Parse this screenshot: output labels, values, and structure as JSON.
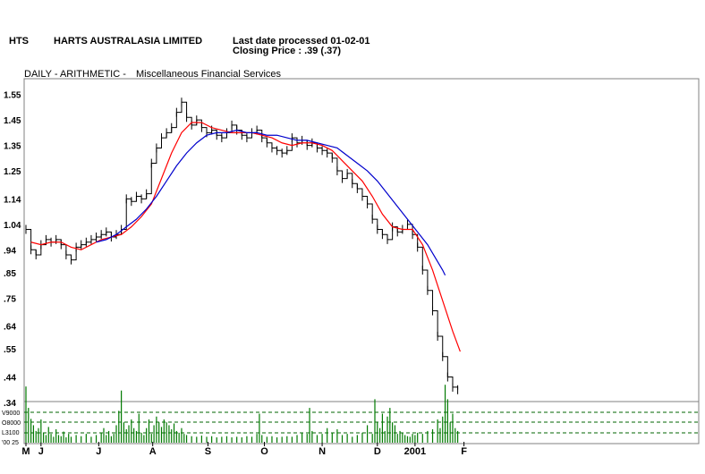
{
  "header": {
    "code": "HTS",
    "company": "HARTS AUSTRALASIA LIMITED",
    "last_date": "Last date processed 01-02-01",
    "closing": "Closing Price : .39  (.37)",
    "mode": "DAILY - ARITHMETIC -",
    "sector": "Miscellaneous Financial Services"
  },
  "chart_data": {
    "type": "line",
    "y_ticks": [
      "1.55",
      "1.45",
      "1.35",
      "1.25",
      "1.14",
      "1.04",
      ".94",
      ".85",
      ".75",
      ".64",
      ".55",
      ".44",
      ".34"
    ],
    "y_tick_values": [
      1.55,
      1.45,
      1.35,
      1.25,
      1.14,
      1.04,
      0.94,
      0.85,
      0.75,
      0.64,
      0.55,
      0.44,
      0.34
    ],
    "ylim": [
      0.34,
      1.57
    ],
    "x_ticks": [
      "M",
      "J",
      "J",
      "A",
      "S",
      "O",
      "N",
      "D",
      "2001",
      "F"
    ],
    "x_tick_days": [
      0,
      12,
      58,
      101,
      145,
      190,
      236,
      280,
      310,
      349
    ],
    "xlim": [
      0,
      350
    ],
    "price": [
      [
        0,
        1.02
      ],
      [
        4,
        0.94
      ],
      [
        8,
        0.92
      ],
      [
        12,
        0.96
      ],
      [
        16,
        0.98
      ],
      [
        20,
        0.97
      ],
      [
        24,
        0.98
      ],
      [
        28,
        0.96
      ],
      [
        32,
        0.92
      ],
      [
        36,
        0.9
      ],
      [
        40,
        0.95
      ],
      [
        44,
        0.96
      ],
      [
        48,
        0.97
      ],
      [
        52,
        0.98
      ],
      [
        56,
        0.99
      ],
      [
        60,
        1.0
      ],
      [
        64,
        1.01
      ],
      [
        68,
        0.99
      ],
      [
        72,
        1.0
      ],
      [
        76,
        1.02
      ],
      [
        80,
        1.14
      ],
      [
        84,
        1.13
      ],
      [
        88,
        1.15
      ],
      [
        92,
        1.14
      ],
      [
        96,
        1.16
      ],
      [
        100,
        1.28
      ],
      [
        104,
        1.34
      ],
      [
        108,
        1.38
      ],
      [
        112,
        1.4
      ],
      [
        116,
        1.42
      ],
      [
        120,
        1.48
      ],
      [
        124,
        1.52
      ],
      [
        128,
        1.46
      ],
      [
        132,
        1.43
      ],
      [
        136,
        1.45
      ],
      [
        140,
        1.42
      ],
      [
        144,
        1.4
      ],
      [
        148,
        1.41
      ],
      [
        152,
        1.39
      ],
      [
        156,
        1.38
      ],
      [
        160,
        1.4
      ],
      [
        164,
        1.43
      ],
      [
        168,
        1.41
      ],
      [
        172,
        1.39
      ],
      [
        176,
        1.38
      ],
      [
        180,
        1.4
      ],
      [
        184,
        1.41
      ],
      [
        188,
        1.38
      ],
      [
        192,
        1.36
      ],
      [
        196,
        1.34
      ],
      [
        200,
        1.33
      ],
      [
        204,
        1.32
      ],
      [
        208,
        1.33
      ],
      [
        212,
        1.38
      ],
      [
        216,
        1.36
      ],
      [
        220,
        1.37
      ],
      [
        224,
        1.35
      ],
      [
        228,
        1.36
      ],
      [
        232,
        1.34
      ],
      [
        236,
        1.33
      ],
      [
        240,
        1.32
      ],
      [
        244,
        1.3
      ],
      [
        248,
        1.25
      ],
      [
        252,
        1.22
      ],
      [
        256,
        1.24
      ],
      [
        260,
        1.2
      ],
      [
        264,
        1.18
      ],
      [
        268,
        1.15
      ],
      [
        272,
        1.12
      ],
      [
        276,
        1.06
      ],
      [
        280,
        1.02
      ],
      [
        284,
        1.0
      ],
      [
        288,
        0.98
      ],
      [
        292,
        1.03
      ],
      [
        296,
        1.01
      ],
      [
        300,
        1.02
      ],
      [
        304,
        1.04
      ],
      [
        308,
        1.0
      ],
      [
        312,
        0.95
      ],
      [
        316,
        0.86
      ],
      [
        320,
        0.78
      ],
      [
        324,
        0.7
      ],
      [
        328,
        0.6
      ],
      [
        332,
        0.52
      ],
      [
        336,
        0.44
      ],
      [
        340,
        0.4
      ],
      [
        344,
        0.39
      ]
    ],
    "series": [
      {
        "points": [
          [
            4,
            0.97
          ],
          [
            12,
            0.96
          ],
          [
            20,
            0.97
          ],
          [
            28,
            0.97
          ],
          [
            36,
            0.95
          ],
          [
            44,
            0.94
          ],
          [
            52,
            0.96
          ],
          [
            60,
            0.98
          ],
          [
            68,
            0.99
          ],
          [
            76,
            1.0
          ],
          [
            84,
            1.03
          ],
          [
            92,
            1.07
          ],
          [
            100,
            1.12
          ],
          [
            108,
            1.22
          ],
          [
            116,
            1.32
          ],
          [
            124,
            1.4
          ],
          [
            132,
            1.44
          ],
          [
            140,
            1.44
          ],
          [
            148,
            1.42
          ],
          [
            156,
            1.41
          ],
          [
            164,
            1.4
          ],
          [
            172,
            1.4
          ],
          [
            180,
            1.4
          ],
          [
            188,
            1.39
          ],
          [
            196,
            1.38
          ],
          [
            204,
            1.36
          ],
          [
            212,
            1.35
          ],
          [
            220,
            1.36
          ],
          [
            228,
            1.36
          ],
          [
            236,
            1.35
          ],
          [
            244,
            1.33
          ],
          [
            252,
            1.29
          ],
          [
            260,
            1.25
          ],
          [
            268,
            1.21
          ],
          [
            276,
            1.15
          ],
          [
            284,
            1.08
          ],
          [
            292,
            1.03
          ],
          [
            300,
            1.02
          ],
          [
            308,
            1.02
          ],
          [
            316,
            0.96
          ],
          [
            324,
            0.86
          ],
          [
            332,
            0.74
          ],
          [
            340,
            0.62
          ],
          [
            346,
            0.54
          ]
        ]
      },
      {
        "points": [
          [
            56,
            0.97
          ],
          [
            64,
            0.98
          ],
          [
            72,
            1.0
          ],
          [
            80,
            1.03
          ],
          [
            88,
            1.06
          ],
          [
            96,
            1.1
          ],
          [
            104,
            1.15
          ],
          [
            112,
            1.21
          ],
          [
            120,
            1.27
          ],
          [
            128,
            1.32
          ],
          [
            136,
            1.36
          ],
          [
            144,
            1.39
          ],
          [
            152,
            1.4
          ],
          [
            160,
            1.4
          ],
          [
            168,
            1.41
          ],
          [
            176,
            1.4
          ],
          [
            184,
            1.4
          ],
          [
            192,
            1.39
          ],
          [
            200,
            1.39
          ],
          [
            208,
            1.38
          ],
          [
            216,
            1.37
          ],
          [
            224,
            1.37
          ],
          [
            232,
            1.36
          ],
          [
            240,
            1.35
          ],
          [
            248,
            1.34
          ],
          [
            256,
            1.31
          ],
          [
            264,
            1.28
          ],
          [
            272,
            1.25
          ],
          [
            280,
            1.21
          ],
          [
            288,
            1.16
          ],
          [
            296,
            1.11
          ],
          [
            304,
            1.06
          ],
          [
            312,
            1.01
          ],
          [
            320,
            0.96
          ],
          [
            326,
            0.91
          ],
          [
            332,
            0.86
          ],
          [
            334,
            0.84
          ]
        ]
      }
    ],
    "volume_ticks": [
      "V9000",
      "O8000",
      "L3100",
      "'00 25"
    ],
    "volume": [
      [
        0,
        0.92
      ],
      [
        2,
        0.55
      ],
      [
        4,
        0.36
      ],
      [
        6,
        0.25
      ],
      [
        8,
        0.15
      ],
      [
        10,
        0.2
      ],
      [
        12,
        0.35
      ],
      [
        14,
        0.12
      ],
      [
        16,
        0.08
      ],
      [
        18,
        0.22
      ],
      [
        20,
        0.1
      ],
      [
        22,
        0.05
      ],
      [
        24,
        0.18
      ],
      [
        26,
        0.08
      ],
      [
        28,
        0.06
      ],
      [
        30,
        0.14
      ],
      [
        32,
        0.04
      ],
      [
        34,
        0.1
      ],
      [
        36,
        0.05
      ],
      [
        40,
        0.08
      ],
      [
        44,
        0.06
      ],
      [
        48,
        0.1
      ],
      [
        52,
        0.05
      ],
      [
        56,
        0.08
      ],
      [
        60,
        0.12
      ],
      [
        62,
        0.2
      ],
      [
        64,
        0.08
      ],
      [
        66,
        0.15
      ],
      [
        68,
        0.06
      ],
      [
        70,
        0.1
      ],
      [
        72,
        0.25
      ],
      [
        74,
        0.5
      ],
      [
        76,
        0.85
      ],
      [
        78,
        0.3
      ],
      [
        80,
        0.18
      ],
      [
        82,
        0.25
      ],
      [
        84,
        0.35
      ],
      [
        86,
        0.2
      ],
      [
        88,
        0.15
      ],
      [
        90,
        0.45
      ],
      [
        92,
        0.12
      ],
      [
        94,
        0.08
      ],
      [
        96,
        0.2
      ],
      [
        98,
        0.35
      ],
      [
        100,
        0.1
      ],
      [
        102,
        0.25
      ],
      [
        104,
        0.4
      ],
      [
        106,
        0.3
      ],
      [
        108,
        0.22
      ],
      [
        110,
        0.35
      ],
      [
        112,
        0.3
      ],
      [
        114,
        0.25
      ],
      [
        116,
        0.18
      ],
      [
        118,
        0.28
      ],
      [
        120,
        0.15
      ],
      [
        122,
        0.12
      ],
      [
        124,
        0.2
      ],
      [
        126,
        0.1
      ],
      [
        128,
        0.08
      ],
      [
        132,
        0.06
      ],
      [
        136,
        0.05
      ],
      [
        140,
        0.07
      ],
      [
        144,
        0.05
      ],
      [
        148,
        0.06
      ],
      [
        152,
        0.04
      ],
      [
        156,
        0.05
      ],
      [
        160,
        0.06
      ],
      [
        164,
        0.04
      ],
      [
        168,
        0.05
      ],
      [
        172,
        0.04
      ],
      [
        176,
        0.06
      ],
      [
        180,
        0.05
      ],
      [
        184,
        0.1
      ],
      [
        186,
        0.45
      ],
      [
        188,
        0.08
      ],
      [
        192,
        0.05
      ],
      [
        196,
        0.06
      ],
      [
        200,
        0.04
      ],
      [
        204,
        0.05
      ],
      [
        208,
        0.06
      ],
      [
        212,
        0.05
      ],
      [
        216,
        0.08
      ],
      [
        220,
        0.12
      ],
      [
        224,
        0.1
      ],
      [
        226,
        0.55
      ],
      [
        228,
        0.15
      ],
      [
        232,
        0.08
      ],
      [
        236,
        0.1
      ],
      [
        240,
        0.2
      ],
      [
        244,
        0.12
      ],
      [
        248,
        0.18
      ],
      [
        252,
        0.08
      ],
      [
        256,
        0.1
      ],
      [
        260,
        0.05
      ],
      [
        264,
        0.08
      ],
      [
        268,
        0.12
      ],
      [
        272,
        0.25
      ],
      [
        276,
        0.1
      ],
      [
        278,
        0.7
      ],
      [
        280,
        0.3
      ],
      [
        282,
        0.2
      ],
      [
        284,
        0.45
      ],
      [
        286,
        0.15
      ],
      [
        288,
        0.4
      ],
      [
        290,
        0.55
      ],
      [
        292,
        0.3
      ],
      [
        294,
        0.25
      ],
      [
        296,
        0.1
      ],
      [
        298,
        0.15
      ],
      [
        300,
        0.12
      ],
      [
        302,
        0.08
      ],
      [
        304,
        0.06
      ],
      [
        306,
        0.05
      ],
      [
        308,
        0.1
      ],
      [
        310,
        0.08
      ],
      [
        312,
        0.12
      ],
      [
        316,
        0.1
      ],
      [
        320,
        0.15
      ],
      [
        324,
        0.18
      ],
      [
        328,
        0.35
      ],
      [
        330,
        0.2
      ],
      [
        332,
        0.4
      ],
      [
        334,
        0.95
      ],
      [
        336,
        0.7
      ],
      [
        338,
        0.3
      ],
      [
        340,
        0.45
      ],
      [
        342,
        0.2
      ],
      [
        344,
        0.15
      ]
    ],
    "colors": {
      "price": "#000000",
      "ma_short": "#ff0000",
      "ma_long": "#0000cc",
      "volume": "#007a00",
      "grid_dashed": "#006400",
      "frame": "#808080"
    },
    "grid": false
  }
}
